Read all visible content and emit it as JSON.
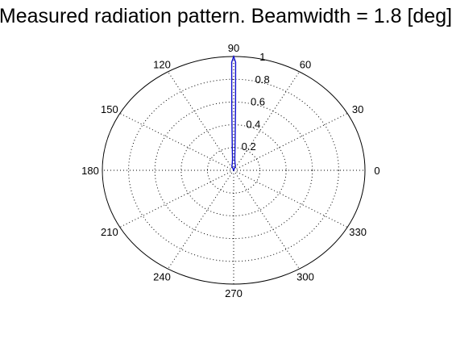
{
  "chart_data": {
    "type": "line",
    "subtype": "polar",
    "title": "Measured radiation pattern. Beamwidth = 1.8 [deg]",
    "rlim": [
      0,
      1
    ],
    "radial_ticks": [
      "0.2",
      "0.4",
      "0.6",
      "0.8",
      "1"
    ],
    "radial_tick_values": [
      0.2,
      0.4,
      0.6,
      0.8,
      1
    ],
    "angle_ticks": [
      "0",
      "30",
      "60",
      "90",
      "120",
      "150",
      "180",
      "210",
      "240",
      "270",
      "300",
      "330"
    ],
    "angle_tick_values": [
      0,
      30,
      60,
      90,
      120,
      150,
      180,
      210,
      240,
      270,
      300,
      330
    ],
    "grid": true,
    "series": [
      {
        "color": "#1010d0",
        "theta_deg": [
          70,
          80,
          85,
          87,
          88.5,
          89.1,
          90,
          90.9,
          91.5,
          93,
          95,
          100,
          110
        ],
        "r": [
          0.04,
          0.06,
          0.1,
          0.2,
          0.55,
          0.95,
          1.0,
          0.95,
          0.55,
          0.2,
          0.1,
          0.06,
          0.04
        ]
      }
    ]
  }
}
